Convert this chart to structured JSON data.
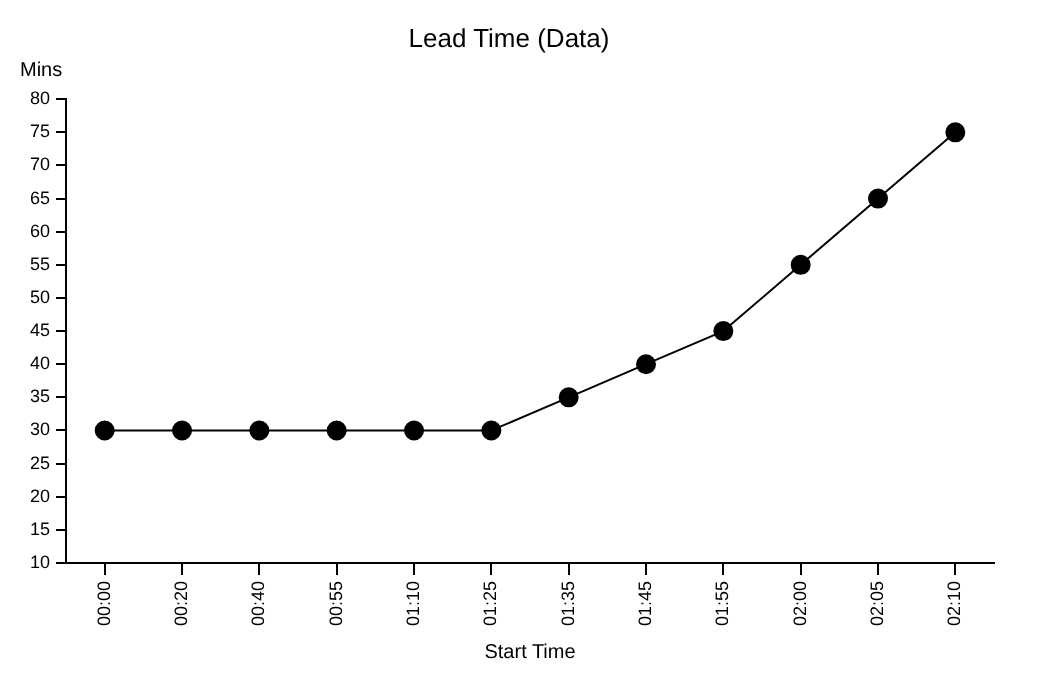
{
  "chart_data": {
    "type": "line",
    "title": "Lead Time (Data)",
    "xlabel": "Start Time",
    "ylabel": "Mins",
    "categories": [
      "00:00",
      "00:20",
      "00:40",
      "00:55",
      "01:10",
      "01:25",
      "01:35",
      "01:45",
      "01:55",
      "02:00",
      "02:05",
      "02:10"
    ],
    "series": [
      {
        "color": "#000000",
        "values": [
          30,
          30,
          30,
          30,
          30,
          30,
          35,
          40,
          45,
          55,
          65,
          75
        ]
      }
    ],
    "ylim": [
      10,
      80
    ],
    "yticks": [
      10,
      15,
      20,
      25,
      30,
      35,
      40,
      45,
      50,
      55,
      60,
      65,
      70,
      75,
      80
    ],
    "grid": false,
    "legend": false,
    "marker": "circle",
    "line_style": "solid"
  }
}
